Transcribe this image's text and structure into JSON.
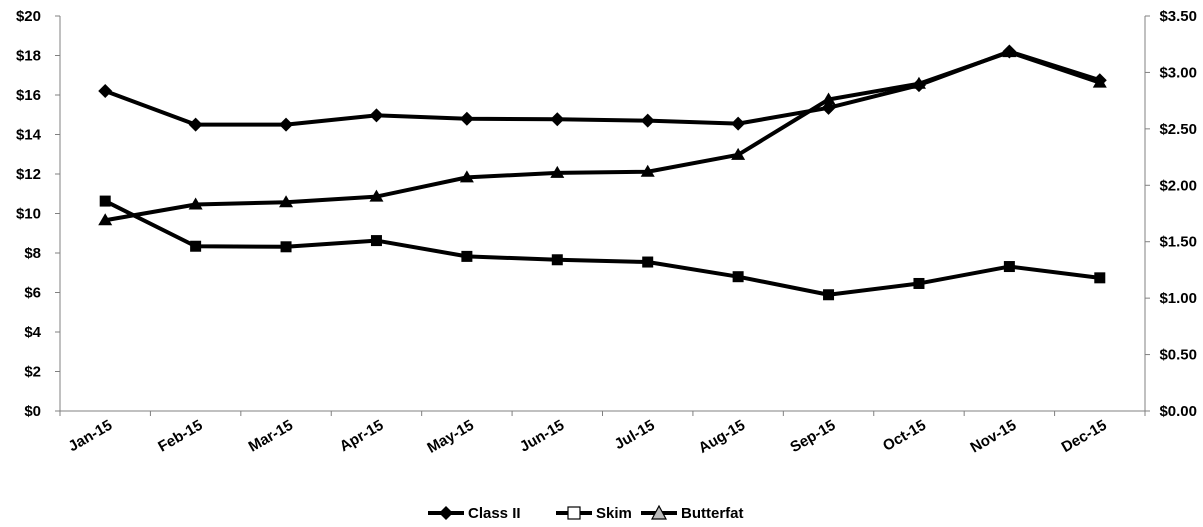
{
  "chart_data": {
    "type": "line",
    "categories": [
      "Jan-15",
      "Feb-15",
      "Mar-15",
      "Apr-15",
      "May-15",
      "Jun-15",
      "Jul-15",
      "Aug-15",
      "Sep-15",
      "Oct-15",
      "Nov-15",
      "Dec-15"
    ],
    "y_left": {
      "ylim": [
        0,
        20
      ],
      "ticks": [
        0,
        2,
        4,
        6,
        8,
        10,
        12,
        14,
        16,
        18,
        20
      ],
      "tick_labels": [
        "$0",
        "$2",
        "$4",
        "$6",
        "$8",
        "$10",
        "$12",
        "$14",
        "$16",
        "$18",
        "$20"
      ]
    },
    "y_right": {
      "ylim": [
        0,
        3.5
      ],
      "ticks": [
        0,
        0.5,
        1,
        1.5,
        2,
        2.5,
        3,
        3.5
      ],
      "tick_labels": [
        "$0.00",
        "$0.50",
        "$1.00",
        "$1.50",
        "$2.00",
        "$2.50",
        "$3.00",
        "$3.50"
      ]
    },
    "series": [
      {
        "name": "Class II",
        "axis": "left",
        "marker": "diamond",
        "values": [
          16.2,
          14.5,
          14.5,
          14.97,
          14.8,
          14.77,
          14.7,
          14.55,
          15.35,
          16.5,
          18.2,
          16.75
        ]
      },
      {
        "name": "Skim",
        "axis": "right",
        "marker": "square",
        "values": [
          1.86,
          1.46,
          1.455,
          1.51,
          1.37,
          1.34,
          1.32,
          1.19,
          1.03,
          1.13,
          1.28,
          1.18
        ]
      },
      {
        "name": "Butterfat",
        "axis": "right",
        "marker": "triangle",
        "values": [
          1.69,
          1.83,
          1.85,
          1.9,
          2.07,
          2.11,
          2.12,
          2.27,
          2.76,
          2.9,
          3.18,
          2.91
        ]
      }
    ],
    "grid": false,
    "legend_position": "bottom"
  }
}
